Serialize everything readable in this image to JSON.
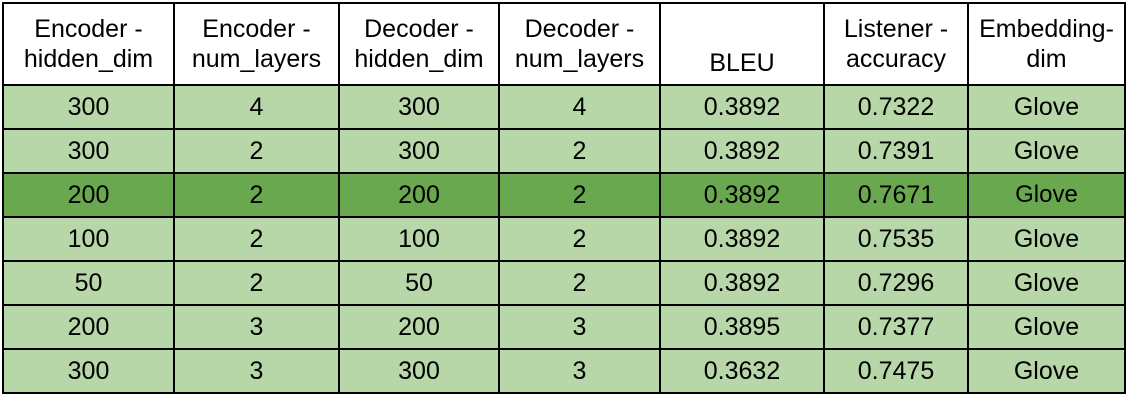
{
  "chart_data": {
    "type": "table",
    "columns": [
      [
        "Encoder -",
        "hidden_dim"
      ],
      [
        "Encoder -",
        "num_layers"
      ],
      [
        "Decoder -",
        "hidden_dim"
      ],
      [
        "Decoder -",
        "num_layers"
      ],
      [
        "BLEU"
      ],
      [
        "Listener -",
        "accuracy"
      ],
      [
        "Embedding-",
        "dim"
      ]
    ],
    "rows": [
      [
        "300",
        "4",
        "300",
        "4",
        "0.3892",
        "0.7322",
        "Glove"
      ],
      [
        "300",
        "2",
        "300",
        "2",
        "0.3892",
        "0.7391",
        "Glove"
      ],
      [
        "200",
        "2",
        "200",
        "2",
        "0.3892",
        "0.7671",
        "Glove"
      ],
      [
        "100",
        "2",
        "100",
        "2",
        "0.3892",
        "0.7535",
        "Glove"
      ],
      [
        "50",
        "2",
        "50",
        "2",
        "0.3892",
        "0.7296",
        "Glove"
      ],
      [
        "200",
        "3",
        "200",
        "3",
        "0.3895",
        "0.7377",
        "Glove"
      ],
      [
        "300",
        "3",
        "300",
        "3",
        "0.3632",
        "0.7475",
        "Glove"
      ]
    ],
    "highlight_row_index": 2,
    "colors": {
      "row_fill": "#b7d7a8",
      "highlight_fill": "#6aa84f",
      "header_fill": "#ffffff",
      "border": "#000000"
    }
  }
}
